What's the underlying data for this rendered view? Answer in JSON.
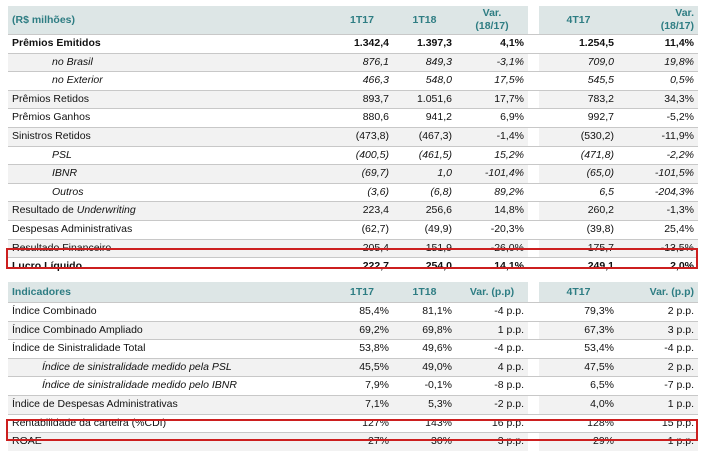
{
  "table1": {
    "header": [
      "(R$ milhões)",
      "1T17",
      "1T18",
      "Var. (18/17)",
      "4T17",
      "Var. (18/17)"
    ],
    "header_lines": [
      [
        "(R$ milhões)"
      ],
      [
        "1T17"
      ],
      [
        "1T18"
      ],
      [
        "Var.",
        "(18/17)"
      ],
      [
        "4T17"
      ],
      [
        "Var.",
        "(18/17)"
      ]
    ],
    "rows": [
      {
        "label": "Prêmios Emitidos",
        "values": [
          "1.342,4",
          "1.397,3",
          "4,1%",
          "1.254,5",
          "11,4%"
        ],
        "style": "bold"
      },
      {
        "label": "no Brasil",
        "values": [
          "876,1",
          "849,3",
          "-3,1%",
          "709,0",
          "19,8%"
        ],
        "style": "sub"
      },
      {
        "label": "no Exterior",
        "values": [
          "466,3",
          "548,0",
          "17,5%",
          "545,5",
          "0,5%"
        ],
        "style": "sub"
      },
      {
        "label": "Prêmios Retidos",
        "values": [
          "893,7",
          "1.051,6",
          "17,7%",
          "783,2",
          "34,3%"
        ],
        "style": "normal"
      },
      {
        "label": "Prêmios Ganhos",
        "values": [
          "880,6",
          "941,2",
          "6,9%",
          "992,7",
          "-5,2%"
        ],
        "style": "normal"
      },
      {
        "label": "Sinistros Retidos",
        "values": [
          "(473,8)",
          "(467,3)",
          "-1,4%",
          "(530,2)",
          "-11,9%"
        ],
        "style": "normal"
      },
      {
        "label": "PSL",
        "values": [
          "(400,5)",
          "(461,5)",
          "15,2%",
          "(471,8)",
          "-2,2%"
        ],
        "style": "sub"
      },
      {
        "label": "IBNR",
        "values": [
          "(69,7)",
          "1,0",
          "-101,4%",
          "(65,0)",
          "-101,5%"
        ],
        "style": "sub"
      },
      {
        "label": "Outros",
        "values": [
          "(3,6)",
          "(6,8)",
          "89,2%",
          "6,5",
          "-204,3%"
        ],
        "style": "sub"
      },
      {
        "label_parts": [
          "Resultado de ",
          "Underwriting"
        ],
        "label": "Resultado de Underwriting",
        "values": [
          "223,4",
          "256,6",
          "14,8%",
          "260,2",
          "-1,3%"
        ],
        "style": "normal"
      },
      {
        "label": "Despesas Administrativas",
        "values": [
          "(62,7)",
          "(49,9)",
          "-20,3%",
          "(39,8)",
          "25,4%"
        ],
        "style": "normal"
      },
      {
        "label": "Resultado Financeiro",
        "values": [
          "205,4",
          "151,9",
          "-26,0%",
          "175,7",
          "-13,5%"
        ],
        "style": "normal"
      },
      {
        "label": "Lucro Líquido",
        "values": [
          "222,7",
          "254,0",
          "14,1%",
          "249,1",
          "2,0%"
        ],
        "style": "bold"
      }
    ]
  },
  "table2": {
    "header": [
      "Indicadores",
      "1T17",
      "1T18",
      "Var. (p.p)",
      "4T17",
      "Var. (p.p)"
    ],
    "rows": [
      {
        "label": "Índice Combinado",
        "values": [
          "85,4%",
          "81,1%",
          "-4 p.p.",
          "79,3%",
          "2 p.p."
        ],
        "style": "normal"
      },
      {
        "label": "Índice Combinado Ampliado",
        "values": [
          "69,2%",
          "69,8%",
          "1 p.p.",
          "67,3%",
          "3 p.p."
        ],
        "style": "normal"
      },
      {
        "label": "Índice de Sinistralidade Total",
        "values": [
          "53,8%",
          "49,6%",
          "-4 p.p.",
          "53,4%",
          "-4 p.p."
        ],
        "style": "normal"
      },
      {
        "label": "Índice de sinistralidade medido pela PSL",
        "values": [
          "45,5%",
          "49,0%",
          "4 p.p.",
          "47,5%",
          "2 p.p."
        ],
        "style": "sub2"
      },
      {
        "label": "Índice de sinistralidade medido pelo IBNR",
        "values": [
          "7,9%",
          "-0,1%",
          "-8 p.p.",
          "6,5%",
          "-7 p.p."
        ],
        "style": "sub2"
      },
      {
        "label": "Índice de Despesas Administrativas",
        "values": [
          "7,1%",
          "5,3%",
          "-2 p.p.",
          "4,0%",
          "1 p.p."
        ],
        "style": "normal"
      },
      {
        "label": "Rentabilidade da carteira (%CDI)",
        "values": [
          "127%",
          "143%",
          "16 p.p.",
          "128%",
          "15 p.p."
        ],
        "style": "normal"
      },
      {
        "label": "ROAE",
        "values": [
          "27%",
          "30%",
          "3 p.p.",
          "29%",
          "1 p.p."
        ],
        "style": "normal"
      }
    ]
  },
  "highlights": [
    "Lucro Líquido",
    "ROAE"
  ],
  "colors": {
    "header_bg": "#dde6e6",
    "header_text": "#2e7d83",
    "row_shade": "#f2f2f2",
    "highlight_border": "#cc1f1f"
  }
}
